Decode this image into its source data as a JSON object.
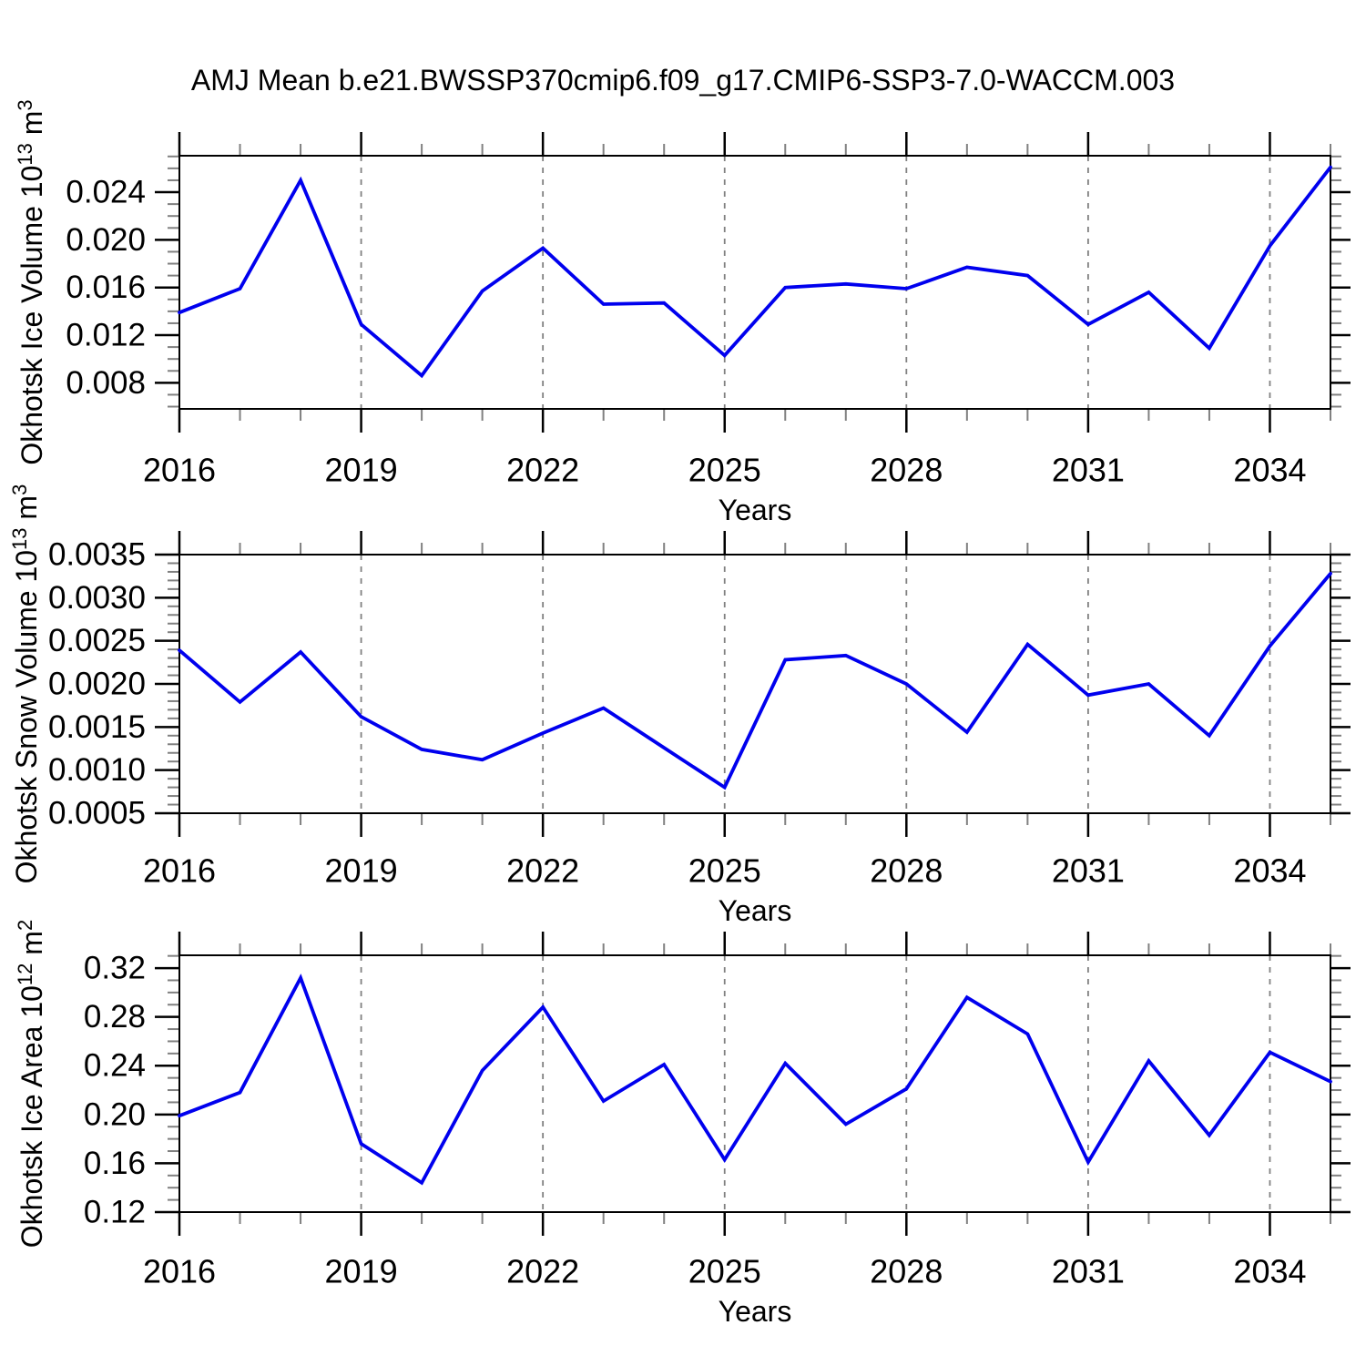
{
  "title": "AMJ Mean b.e21.BWSSP370cmip6.f09_g17.CMIP6-SSP3-7.0-WACCM.003",
  "line_color": "#0000EE",
  "grid_color": "#808080",
  "minor_tick_color": "#808080",
  "major_tick_color": "#000000",
  "years": [
    2016,
    2017,
    2018,
    2019,
    2020,
    2021,
    2022,
    2023,
    2024,
    2025,
    2026,
    2027,
    2028,
    2029,
    2030,
    2031,
    2032,
    2033,
    2034,
    2035
  ],
  "x_major_ticks": [
    2016,
    2019,
    2022,
    2025,
    2028,
    2031,
    2034
  ],
  "x_tick_labels": [
    "2016",
    "2019",
    "2022",
    "2025",
    "2028",
    "2031",
    "2034"
  ],
  "xlim": [
    2016,
    2035
  ],
  "chart_data": [
    {
      "type": "line",
      "name": "okhotsk-ice-volume",
      "xlabel": "Years",
      "ylabel_plain": "Okhotsk Ice Volume 10^13 m^3",
      "ylabel_parts": [
        {
          "t": "Okhotsk Ice Volume 10",
          "sup": false
        },
        {
          "t": "13",
          "sup": true
        },
        {
          "t": " m",
          "sup": false
        },
        {
          "t": "3",
          "sup": true
        }
      ],
      "x": [
        2016,
        2017,
        2018,
        2019,
        2020,
        2021,
        2022,
        2023,
        2024,
        2025,
        2026,
        2027,
        2028,
        2029,
        2030,
        2031,
        2032,
        2033,
        2034,
        2035
      ],
      "values": [
        0.0139,
        0.0159,
        0.025,
        0.0129,
        0.0086,
        0.0157,
        0.0193,
        0.0146,
        0.0147,
        0.0103,
        0.016,
        0.0163,
        0.0159,
        0.0177,
        0.017,
        0.0129,
        0.0156,
        0.0109,
        0.0195,
        0.0261
      ],
      "ylim": [
        0.00581,
        0.02706
      ],
      "yticks": [
        0.008,
        0.012,
        0.016,
        0.02,
        0.024
      ],
      "ytick_labels": [
        "0.008",
        "0.012",
        "0.016",
        "0.020",
        "0.024"
      ],
      "y_minor_step": 0.001,
      "grid": "vertical-dashed",
      "legend": "none"
    },
    {
      "type": "line",
      "name": "okhotsk-snow-volume",
      "xlabel": "Years",
      "ylabel_plain": "Okhotsk Snow Volume 10^13 m^3",
      "ylabel_parts": [
        {
          "t": "Okhotsk Snow Volume 10",
          "sup": false
        },
        {
          "t": "13",
          "sup": true
        },
        {
          "t": " m",
          "sup": false
        },
        {
          "t": "3",
          "sup": true
        }
      ],
      "x": [
        2016,
        2017,
        2018,
        2019,
        2020,
        2021,
        2022,
        2023,
        2024,
        2025,
        2026,
        2027,
        2028,
        2029,
        2030,
        2031,
        2032,
        2033,
        2034,
        2035
      ],
      "values": [
        0.00239,
        0.00179,
        0.00237,
        0.00162,
        0.00124,
        0.00112,
        0.00143,
        0.00172,
        0.00126,
        0.0008,
        0.00228,
        0.00233,
        0.002,
        0.00144,
        0.00246,
        0.00187,
        0.002,
        0.0014,
        0.00244,
        0.00328
      ],
      "ylim": [
        0.0005,
        0.0035
      ],
      "yticks": [
        0.0005,
        0.001,
        0.0015,
        0.002,
        0.0025,
        0.003,
        0.0035
      ],
      "ytick_labels": [
        "0.0005",
        "0.0010",
        "0.0015",
        "0.0020",
        "0.0025",
        "0.0030",
        "0.0035"
      ],
      "y_minor_step": 0.0001,
      "grid": "vertical-dashed",
      "legend": "none"
    },
    {
      "type": "line",
      "name": "okhotsk-ice-area",
      "xlabel": "Years",
      "ylabel_plain": "Okhotsk Ice Area 10^12 m^2",
      "ylabel_parts": [
        {
          "t": "Okhotsk Ice Area 10",
          "sup": false
        },
        {
          "t": "12",
          "sup": true
        },
        {
          "t": " m",
          "sup": false
        },
        {
          "t": "2",
          "sup": true
        }
      ],
      "x": [
        2016,
        2017,
        2018,
        2019,
        2020,
        2021,
        2022,
        2023,
        2024,
        2025,
        2026,
        2027,
        2028,
        2029,
        2030,
        2031,
        2032,
        2033,
        2034,
        2035
      ],
      "values": [
        0.199,
        0.218,
        0.312,
        0.176,
        0.144,
        0.236,
        0.288,
        0.211,
        0.241,
        0.163,
        0.242,
        0.192,
        0.221,
        0.296,
        0.266,
        0.161,
        0.244,
        0.183,
        0.251,
        0.227
      ],
      "ylim": [
        0.12,
        0.3305
      ],
      "yticks": [
        0.12,
        0.16,
        0.2,
        0.24,
        0.28,
        0.32
      ],
      "ytick_labels": [
        "0.12",
        "0.16",
        "0.20",
        "0.24",
        "0.28",
        "0.32"
      ],
      "y_minor_step": 0.01,
      "grid": "vertical-dashed",
      "legend": "none"
    }
  ]
}
